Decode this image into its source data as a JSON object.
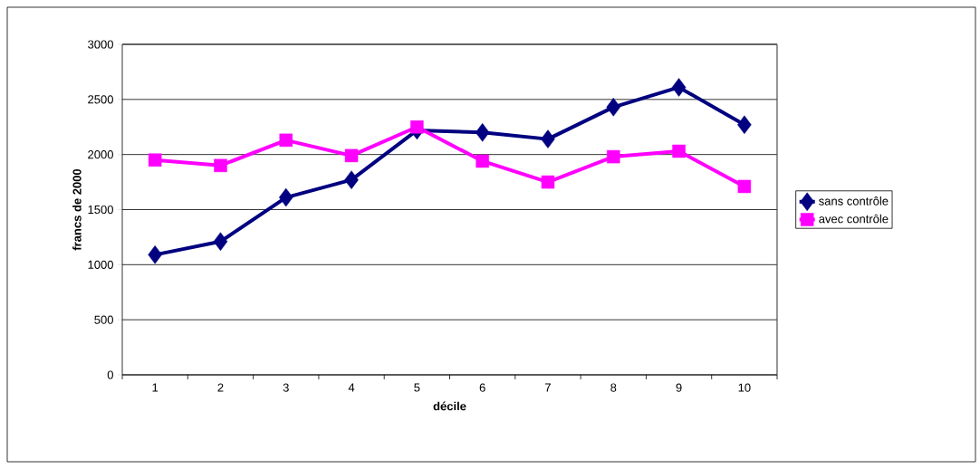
{
  "chart_data": {
    "type": "line",
    "xlabel": "décile",
    "ylabel": "francs de 2000",
    "categories": [
      "1",
      "2",
      "3",
      "4",
      "5",
      "6",
      "7",
      "8",
      "9",
      "10"
    ],
    "series": [
      {
        "name": "sans contrôle",
        "color": "#000080",
        "marker": "diamond",
        "values": [
          1090,
          1210,
          1610,
          1770,
          2220,
          2200,
          2140,
          2430,
          2610,
          2270
        ]
      },
      {
        "name": "avec contrôle",
        "color": "#ff00ff",
        "marker": "square",
        "values": [
          1950,
          1900,
          2130,
          1990,
          2250,
          1940,
          1750,
          1980,
          2030,
          1710
        ]
      }
    ],
    "ylim": [
      0,
      3000
    ],
    "yticks": [
      0,
      500,
      1000,
      1500,
      2000,
      2500,
      3000
    ],
    "grid": "y",
    "legend": "right",
    "line_style": "solid"
  }
}
